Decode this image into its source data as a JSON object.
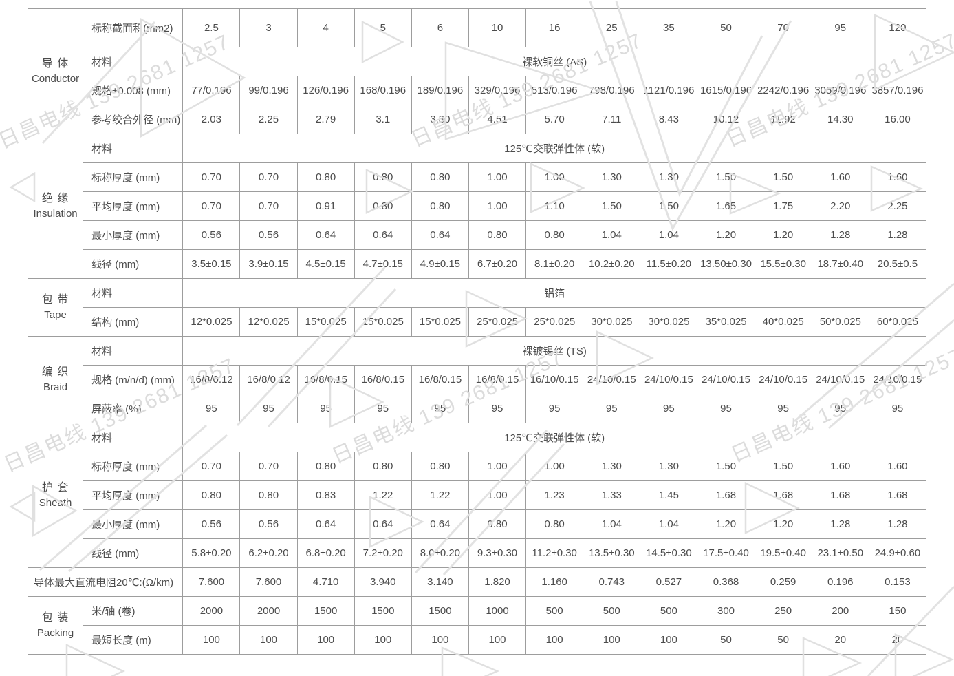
{
  "page": {
    "background": "#ffffff",
    "border_color": "#9d9d9d",
    "text_color": "#4c4c4c"
  },
  "watermark": {
    "text": "日昌电线 139 2681 1257",
    "color": "#dcdcdc"
  },
  "table": {
    "columns": [
      "2.5",
      "3",
      "4",
      "5",
      "6",
      "10",
      "16",
      "25",
      "35",
      "50",
      "70",
      "95",
      "120"
    ],
    "sections": [
      {
        "id": "conductor",
        "group_zh": "导 体",
        "group_en": "Conductor",
        "rows": [
          {
            "label": "标称截面积(mm2)",
            "type": "values",
            "values": [
              "2.5",
              "3",
              "4",
              "5",
              "6",
              "10",
              "16",
              "25",
              "35",
              "50",
              "70",
              "95",
              "120"
            ]
          },
          {
            "label": "材料",
            "type": "span",
            "value": "裸软铜丝 (AS)"
          },
          {
            "label": "规格±0.008 (mm)",
            "type": "values",
            "values": [
              "77/0.196",
              "99/0.196",
              "126/0.196",
              "168/0.196",
              "189/0.196",
              "329/0.196",
              "513/0.196",
              "798/0.196",
              "1121/0.196",
              "1615/0.196",
              "2242/0.196",
              "3059/0.196",
              "3857/0.196"
            ]
          },
          {
            "label": "参考绞合外径 (mm)",
            "type": "values",
            "values": [
              "2.03",
              "2.25",
              "2.79",
              "3.1",
              "3.30",
              "4.51",
              "5.70",
              "7.11",
              "8.43",
              "10.12",
              "11.92",
              "14.30",
              "16.00"
            ]
          }
        ]
      },
      {
        "id": "insulation",
        "group_zh": "绝 缘",
        "group_en": "Insulation",
        "rows": [
          {
            "label": "材料",
            "type": "span",
            "value": "125℃交联弹性体 (软)"
          },
          {
            "label": "标称厚度 (mm)",
            "type": "values",
            "values": [
              "0.70",
              "0.70",
              "0.80",
              "0.80",
              "0.80",
              "1.00",
              "1.00",
              "1.30",
              "1.30",
              "1.50",
              "1.50",
              "1.60",
              "1.60"
            ]
          },
          {
            "label": "平均厚度 (mm)",
            "type": "values",
            "values": [
              "0.70",
              "0.70",
              "0.91",
              "0.80",
              "0.80",
              "1.00",
              "1.10",
              "1.50",
              "1.50",
              "1.65",
              "1.75",
              "2.20",
              "2.25"
            ]
          },
          {
            "label": "最小厚度 (mm)",
            "type": "values",
            "values": [
              "0.56",
              "0.56",
              "0.64",
              "0.64",
              "0.64",
              "0.80",
              "0.80",
              "1.04",
              "1.04",
              "1.20",
              "1.20",
              "1.28",
              "1.28"
            ]
          },
          {
            "label": "线径 (mm)",
            "type": "values",
            "values": [
              "3.5±0.15",
              "3.9±0.15",
              "4.5±0.15",
              "4.7±0.15",
              "4.9±0.15",
              "6.7±0.20",
              "8.1±0.20",
              "10.2±0.20",
              "11.5±0.20",
              "13.50±0.30",
              "15.5±0.30",
              "18.7±0.40",
              "20.5±0.5"
            ]
          }
        ]
      },
      {
        "id": "tape",
        "group_zh": "包 带",
        "group_en": "Tape",
        "rows": [
          {
            "label": "材料",
            "type": "span",
            "value": "铝箔"
          },
          {
            "label": "结构 (mm)",
            "type": "values",
            "values": [
              "12*0.025",
              "12*0.025",
              "15*0.025",
              "15*0.025",
              "15*0.025",
              "25*0.025",
              "25*0.025",
              "30*0.025",
              "30*0.025",
              "35*0.025",
              "40*0.025",
              "50*0.025",
              "60*0.025"
            ]
          }
        ]
      },
      {
        "id": "braid",
        "group_zh": "编 织",
        "group_en": "Braid",
        "rows": [
          {
            "label": "材料",
            "type": "span",
            "value": "裸镀锡丝 (TS)"
          },
          {
            "label": "规格 (m/n/d) (mm)",
            "type": "values",
            "values": [
              "16/8/0.12",
              "16/8/0.12",
              "16/8/0.15",
              "16/8/0.15",
              "16/8/0.15",
              "16/8/0.15",
              "16/10/0.15",
              "24/10/0.15",
              "24/10/0.15",
              "24/10/0.15",
              "24/10/0.15",
              "24/10/0.15",
              "24/10/0.15"
            ]
          },
          {
            "label": "屏蔽率 (%)",
            "type": "values",
            "values": [
              "95",
              "95",
              "95",
              "95",
              "95",
              "95",
              "95",
              "95",
              "95",
              "95",
              "95",
              "95",
              "95"
            ]
          }
        ]
      },
      {
        "id": "sheath",
        "group_zh": "护 套",
        "group_en": "Sheath",
        "rows": [
          {
            "label": "材料",
            "type": "span",
            "value": "125℃交联弹性体 (软)"
          },
          {
            "label": "标称厚度 (mm)",
            "type": "values",
            "values": [
              "0.70",
              "0.70",
              "0.80",
              "0.80",
              "0.80",
              "1.00",
              "1.00",
              "1.30",
              "1.30",
              "1.50",
              "1.50",
              "1.60",
              "1.60"
            ]
          },
          {
            "label": "平均厚度 (mm)",
            "type": "values",
            "values": [
              "0.80",
              "0.80",
              "0.83",
              "1.22",
              "1.22",
              "1.00",
              "1.23",
              "1.33",
              "1.45",
              "1.68",
              "1.68",
              "1.68",
              "1.68"
            ]
          },
          {
            "label": "最小厚度 (mm)",
            "type": "values",
            "values": [
              "0.56",
              "0.56",
              "0.64",
              "0.64",
              "0.64",
              "0.80",
              "0.80",
              "1.04",
              "1.04",
              "1.20",
              "1.20",
              "1.28",
              "1.28"
            ]
          },
          {
            "label": "线径 (mm)",
            "type": "values",
            "values": [
              "5.8±0.20",
              "6.2±0.20",
              "6.8±0.20",
              "7.2±0.20",
              "8.0±0.20",
              "9.3±0.30",
              "11.2±0.30",
              "13.5±0.30",
              "14.5±0.30",
              "17.5±0.40",
              "19.5±0.40",
              "23.1±0.50",
              "24.9±0.60"
            ]
          }
        ]
      },
      {
        "id": "resistance",
        "full_label": "导体最大直流电阻20℃:(Ω/km)",
        "rows": [
          {
            "label": "导体最大直流电阻20℃:(Ω/km)",
            "type": "values",
            "values": [
              "7.600",
              "7.600",
              "4.710",
              "3.940",
              "3.140",
              "1.820",
              "1.160",
              "0.743",
              "0.527",
              "0.368",
              "0.259",
              "0.196",
              "0.153"
            ]
          }
        ]
      },
      {
        "id": "packing",
        "group_zh": "包 装",
        "group_en": "Packing",
        "rows": [
          {
            "label": "米/轴 (卷)",
            "type": "values",
            "values": [
              "2000",
              "2000",
              "1500",
              "1500",
              "1500",
              "1000",
              "500",
              "500",
              "500",
              "300",
              "250",
              "200",
              "150"
            ]
          },
          {
            "label": "最短长度 (m)",
            "type": "values",
            "values": [
              "100",
              "100",
              "100",
              "100",
              "100",
              "100",
              "100",
              "100",
              "100",
              "50",
              "50",
              "20",
              "20"
            ]
          }
        ]
      }
    ]
  }
}
